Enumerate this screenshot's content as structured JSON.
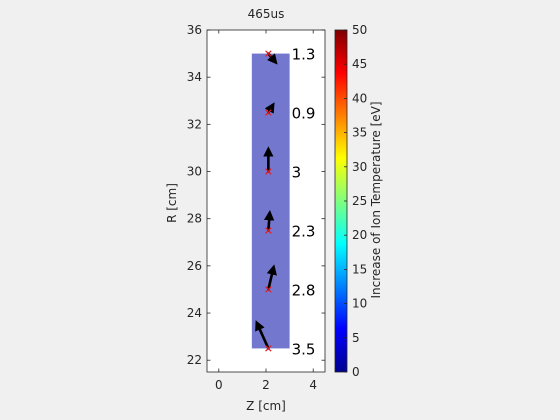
{
  "chart_data": {
    "type": "scatter",
    "title": "465us",
    "xlabel": "Z [cm]",
    "ylabel": "R [cm]",
    "xlim": [
      -0.5,
      4.5
    ],
    "ylim": [
      21.5,
      36
    ],
    "xticks": [
      "0",
      "2",
      "4"
    ],
    "yticks": [
      "22",
      "24",
      "26",
      "28",
      "30",
      "32",
      "34",
      "36"
    ],
    "xtick_values": [
      0,
      2,
      4
    ],
    "ytick_values": [
      22,
      24,
      26,
      28,
      30,
      32,
      34,
      36
    ],
    "grid": false,
    "region": {
      "z": [
        1.4,
        3.0
      ],
      "r": [
        22.5,
        35.0
      ],
      "color": "#5a5fc4"
    },
    "points": [
      {
        "z": 2.1,
        "r": 35.0,
        "value": 1.3,
        "label": "1.3",
        "dz": 0.25,
        "dr": -0.3
      },
      {
        "z": 2.1,
        "r": 32.5,
        "value": 0.9,
        "label": "0.9",
        "dz": 0.15,
        "dr": 0.25
      },
      {
        "z": 2.1,
        "r": 30.0,
        "value": 3.0,
        "label": "3",
        "dz": 0.0,
        "dr": 0.85
      },
      {
        "z": 2.1,
        "r": 27.5,
        "value": 2.3,
        "label": "2.3",
        "dz": 0.05,
        "dr": 0.65
      },
      {
        "z": 2.1,
        "r": 25.0,
        "value": 2.8,
        "label": "2.8",
        "dz": 0.2,
        "dr": 0.85
      },
      {
        "z": 2.1,
        "r": 22.5,
        "value": 3.5,
        "label": "3.5",
        "dz": -0.45,
        "dr": 1.0
      }
    ],
    "colorbar": {
      "label": "Increase of Ion Temperature [eV]",
      "min": 0,
      "max": 50,
      "ticks": [
        "0",
        "5",
        "10",
        "15",
        "20",
        "25",
        "30",
        "35",
        "40",
        "45",
        "50"
      ],
      "tick_values": [
        0,
        5,
        10,
        15,
        20,
        25,
        30,
        35,
        40,
        45,
        50
      ],
      "colormap": "jet"
    },
    "marker_color": "#e8191b",
    "arrow_color": "#000000"
  }
}
